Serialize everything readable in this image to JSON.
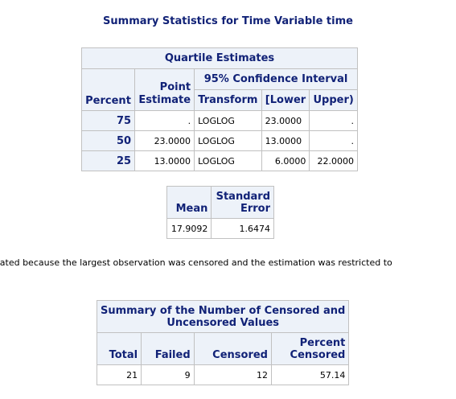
{
  "title": "Summary Statistics for Time Variable time",
  "quartile_table": {
    "caption": "Quartile Estimates",
    "headers": {
      "percent": "Percent",
      "point_estimate_l1": "Point",
      "point_estimate_l2": "Estimate",
      "ci_group": "95% Confidence Interval",
      "transform": "Transform",
      "lower": "[Lower",
      "upper": "Upper)"
    },
    "rows": [
      {
        "percent": "75",
        "estimate": ".",
        "transform": "LOGLOG",
        "lower": "23.0000",
        "upper": "."
      },
      {
        "percent": "50",
        "estimate": "23.0000",
        "transform": "LOGLOG",
        "lower": "13.0000",
        "upper": "."
      },
      {
        "percent": "25",
        "estimate": "13.0000",
        "transform": "LOGLOG",
        "lower": "6.0000",
        "upper": "22.0000"
      }
    ]
  },
  "mean_table": {
    "headers": {
      "mean": "Mean",
      "se_l1": "Standard",
      "se_l2": "Error"
    },
    "row": {
      "mean": "17.9092",
      "se": "1.6474"
    }
  },
  "note": "imated because the largest observation was censored and the estimation was restricted to",
  "censor_table": {
    "caption_l1": "Summary of the Number of Censored and",
    "caption_l2": "Uncensored Values",
    "headers": {
      "total": "Total",
      "failed": "Failed",
      "censored": "Censored",
      "pct_l1": "Percent",
      "pct_l2": "Censored"
    },
    "row": {
      "total": "21",
      "failed": "9",
      "censored": "12",
      "pct": "57.14"
    }
  }
}
